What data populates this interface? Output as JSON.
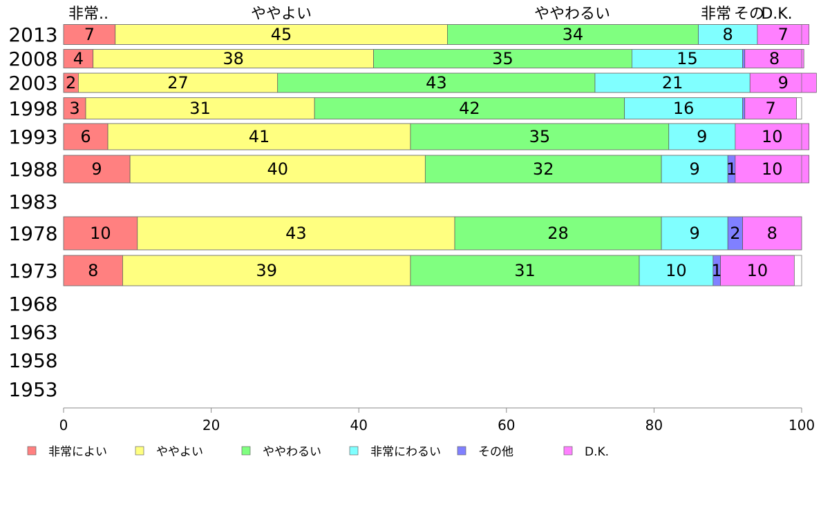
{
  "chart_data": {
    "type": "bar",
    "orientation": "horizontal",
    "stacked": true,
    "xlim": [
      0,
      100
    ],
    "x_ticks": [
      0,
      20,
      40,
      60,
      80,
      100
    ],
    "categories": [
      "2013",
      "2008",
      "2003",
      "1998",
      "1993",
      "1988",
      "1983",
      "1978",
      "1973",
      "1968",
      "1963",
      "1958",
      "1953"
    ],
    "series": [
      {
        "name": "非常によい",
        "color": "#ff8080",
        "values": [
          7,
          4,
          2,
          3,
          6,
          9,
          null,
          10,
          8,
          null,
          null,
          null,
          null
        ]
      },
      {
        "name": "ややよい",
        "color": "#ffff80",
        "values": [
          45,
          38,
          27,
          31,
          41,
          40,
          null,
          43,
          39,
          null,
          null,
          null,
          null
        ]
      },
      {
        "name": "ややわるい",
        "color": "#80ff80",
        "values": [
          34,
          35,
          43,
          42,
          35,
          32,
          null,
          28,
          31,
          null,
          null,
          null,
          null
        ]
      },
      {
        "name": "非常にわるい",
        "color": "#80ffff",
        "values": [
          8,
          15,
          21,
          16,
          9,
          9,
          null,
          9,
          10,
          null,
          null,
          null,
          null
        ]
      },
      {
        "name": "その他",
        "color": "#8080ff",
        "values": [
          0,
          0.3,
          0,
          0.3,
          0,
          1,
          null,
          2,
          1,
          null,
          null,
          null,
          null
        ]
      },
      {
        "name": "D.K.",
        "color": "#ff80ff",
        "values": [
          7,
          8,
          9,
          7,
          10,
          10,
          null,
          8,
          10,
          null,
          null,
          null,
          null
        ]
      }
    ],
    "segment_labels": [
      [
        "7",
        "45",
        "34",
        "8",
        "",
        "7"
      ],
      [
        "4",
        "38",
        "35",
        "15",
        "",
        "8"
      ],
      [
        "2",
        "27",
        "43",
        "21",
        "",
        "9"
      ],
      [
        "3",
        "31",
        "42",
        "16",
        "",
        "7"
      ],
      [
        "6",
        "41",
        "35",
        "9",
        "",
        "10"
      ],
      [
        "9",
        "40",
        "32",
        "9",
        "1",
        "10"
      ],
      null,
      [
        "10",
        "43",
        "28",
        "9",
        "2",
        "8"
      ],
      [
        "8",
        "39",
        "31",
        "10",
        "1",
        "10"
      ],
      null,
      null,
      null,
      null
    ],
    "column_headers": [
      "非常..",
      "ややよい",
      "ややわるい",
      "非常",
      "その",
      "D.K."
    ],
    "legend_position": "bottom"
  }
}
